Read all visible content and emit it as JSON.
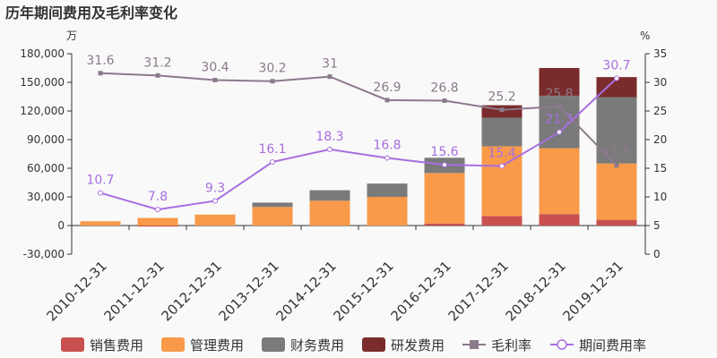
{
  "chart_data": {
    "type": "bar",
    "title": "历年期间费用及毛利率变化",
    "left_unit": "万",
    "right_unit": "%",
    "categories": [
      "2010-12-31",
      "2011-12-31",
      "2012-12-31",
      "2013-12-31",
      "2014-12-31",
      "2015-12-31",
      "2016-12-31",
      "2017-12-31",
      "2018-12-31",
      "2019-12-31"
    ],
    "left_axis": {
      "min": -30000,
      "max": 180000,
      "ticks": [
        -30000,
        0,
        30000,
        60000,
        90000,
        120000,
        150000,
        180000
      ],
      "tick_labels": [
        "-30,000",
        "0",
        "30,000",
        "60,000",
        "90,000",
        "120,000",
        "150,000",
        "180,000"
      ]
    },
    "right_axis": {
      "min": 0,
      "max": 35,
      "ticks": [
        0,
        5,
        10,
        15,
        20,
        25,
        30,
        35
      ],
      "tick_labels": [
        "0",
        "5",
        "10",
        "15",
        "20",
        "25",
        "30",
        "35"
      ]
    },
    "series": [
      {
        "name": "销售费用",
        "kind": "bar",
        "color": "#c9504f",
        "values": [
          0,
          -1000,
          0,
          0,
          0,
          0,
          2000,
          10000,
          12000,
          6000
        ]
      },
      {
        "name": "管理费用",
        "kind": "bar",
        "color": "#f89a4a",
        "values": [
          4500,
          8000,
          11500,
          19500,
          26000,
          30000,
          53000,
          73000,
          69000,
          59000
        ]
      },
      {
        "name": "财务费用",
        "kind": "bar",
        "color": "#7a7a7a",
        "values": [
          0,
          0,
          0,
          4500,
          11000,
          14000,
          16000,
          30000,
          55000,
          69500
        ]
      },
      {
        "name": "研发费用",
        "kind": "bar",
        "color": "#7a2c2c",
        "values": [
          0,
          0,
          0,
          0,
          0,
          0,
          0,
          13000,
          29000,
          21000
        ]
      },
      {
        "name": "毛利率",
        "kind": "line",
        "color": "#8c7a8c",
        "values": [
          31.6,
          31.2,
          30.4,
          30.2,
          31,
          26.9,
          26.8,
          25.2,
          25.8,
          15.5
        ],
        "labels": [
          "31.6",
          "31.2",
          "30.4",
          "30.2",
          "31",
          "26.9",
          "26.8",
          "25.2",
          "25.8",
          "15.5"
        ]
      },
      {
        "name": "期间费用率",
        "kind": "line",
        "color": "#a86ee0",
        "values": [
          10.7,
          7.8,
          9.3,
          16.1,
          18.3,
          16.8,
          15.6,
          15.4,
          21.3,
          30.7
        ],
        "labels": [
          "10.7",
          "7.8",
          "9.3",
          "16.1",
          "18.3",
          "16.8",
          "15.6",
          "15.4",
          "21.3",
          "30.7"
        ]
      }
    ],
    "grid": false,
    "legend_position": "bottom"
  }
}
